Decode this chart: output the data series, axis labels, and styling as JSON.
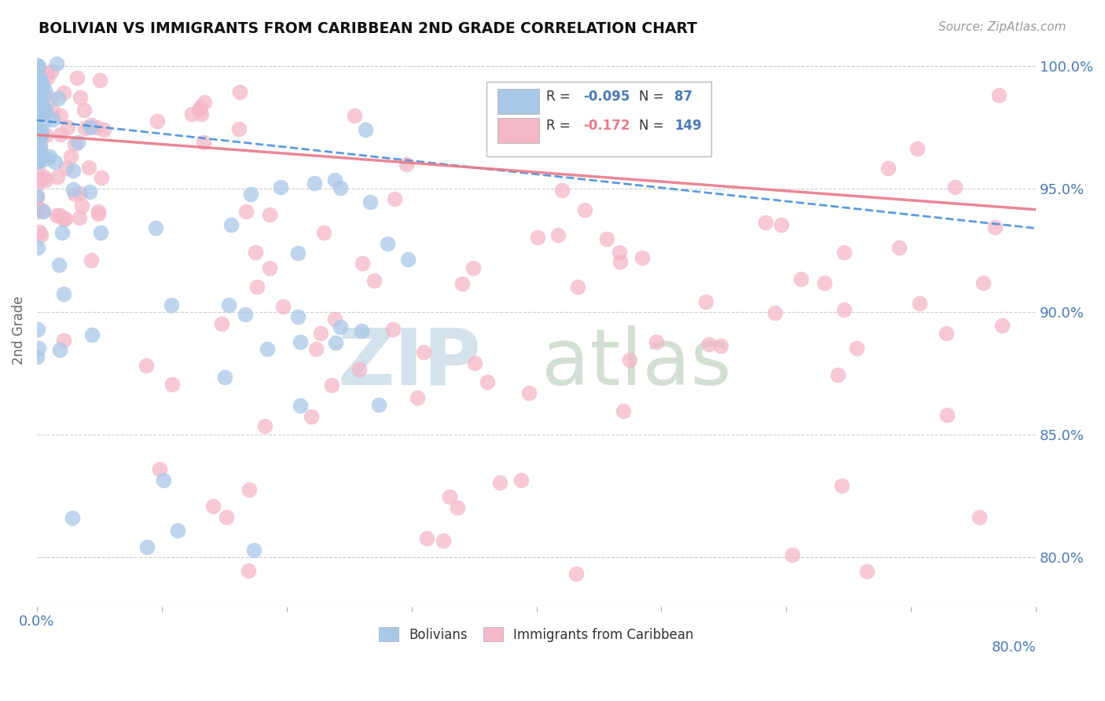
{
  "title": "BOLIVIAN VS IMMIGRANTS FROM CARIBBEAN 2ND GRADE CORRELATION CHART",
  "source": "Source: ZipAtlas.com",
  "ylabel": "2nd Grade",
  "blue_color": "#a8c8e8",
  "pink_color": "#f4b8c8",
  "blue_line_color": "#4a90d9",
  "pink_line_color": "#e87a8a",
  "watermark_zip_color": "#c8daea",
  "watermark_atlas_color": "#b0c8b0",
  "background_color": "#ffffff",
  "xlim": [
    0.0,
    0.8
  ],
  "ylim": [
    0.78,
    1.005
  ],
  "blue_r": -0.095,
  "blue_n": 87,
  "pink_r": -0.172,
  "pink_n": 149,
  "blue_slope": -0.055,
  "blue_intercept": 0.978,
  "pink_slope": -0.038,
  "pink_intercept": 0.972
}
